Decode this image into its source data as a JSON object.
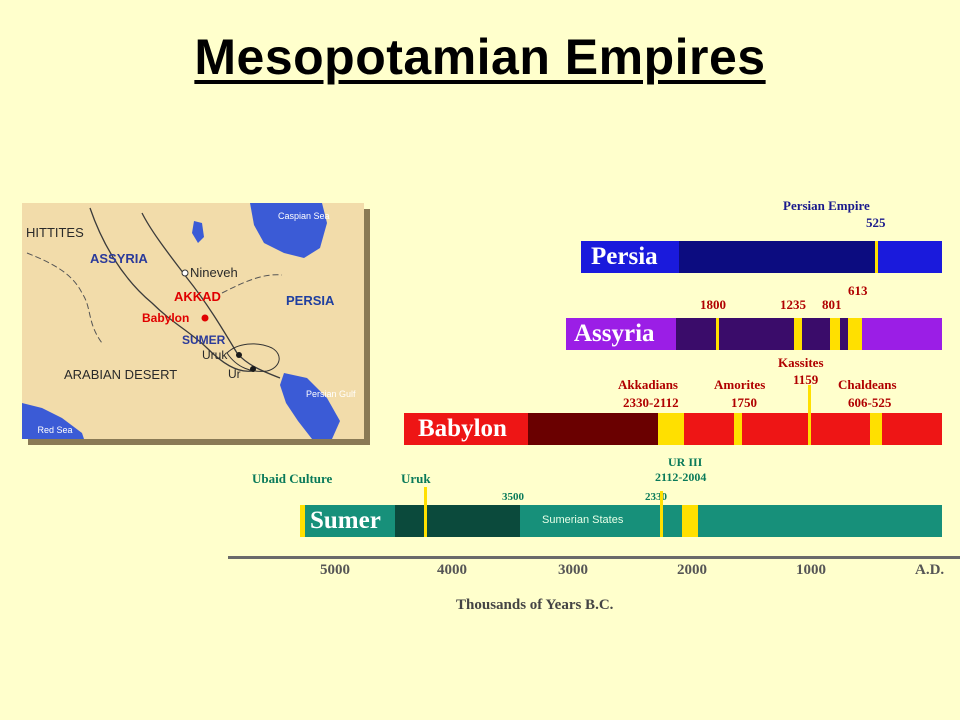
{
  "title": "Mesopotamian Empires",
  "colors": {
    "background": "#ffffcc",
    "persia_bar": "#1a1adc",
    "persia_dark": "#0c0c80",
    "assyria_bar": "#9b1ee6",
    "assyria_dark": "#3a0c6a",
    "babylon_bar": "#ee1515",
    "babylon_dark": "#6a0000",
    "sumer_bar": "#17907a",
    "sumer_dark": "#0b4a3c",
    "marker": "#ffe000"
  },
  "map": {
    "labels": {
      "hittites": "HITTITES",
      "assyria": "ASSYRIA",
      "nineveh": "Nineveh",
      "akkad": "AKKAD",
      "babylon": "Babylon",
      "persia": "PERSIA",
      "sumer": "SUMER",
      "uruk": "Uruk",
      "ur": "Ur",
      "desert": "ARABIAN DESERT",
      "caspian": "Caspian Sea",
      "gulf": "Persian Gulf",
      "red_sea": "Red Sea"
    }
  },
  "timeline": {
    "persia": {
      "label": "Persia",
      "annotations": {
        "empire": "Persian Empire",
        "year": "525"
      }
    },
    "assyria": {
      "label": "Assyria",
      "annotations": {
        "a1": "1800",
        "a2": "1235",
        "a3": "801",
        "a4": "613"
      }
    },
    "babylon": {
      "label": "Babylon",
      "annotations": {
        "akkadians": "Akkadians",
        "akk_years": "2330-2112",
        "amorites": "Amorites",
        "amo_year": "1750",
        "kassites": "Kassites",
        "kas_year": "1159",
        "chaldeans": "Chaldeans",
        "chal_years": "606-525"
      }
    },
    "sumer": {
      "label": "Sumer",
      "states_label": "Sumerian States",
      "annotations": {
        "ubaid": "Ubaid Culture",
        "uruk": "Uruk",
        "y3500": "3500",
        "y2330": "2330",
        "ur3": "UR III",
        "ur3_years": "2112-2004"
      }
    },
    "axis": {
      "ticks": [
        "5000",
        "4000",
        "3000",
        "2000",
        "1000",
        "A.D."
      ],
      "title": "Thousands of Years B.C."
    }
  }
}
